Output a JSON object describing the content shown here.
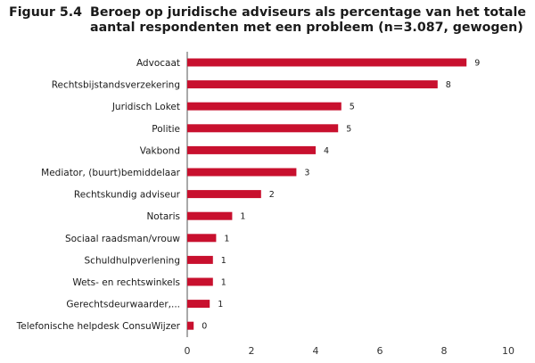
{
  "figure_label": "Figuur 5.4",
  "title_line1": "Beroep op juridische adviseurs als percentage van het totale",
  "title_line2": "aantal respondenten met een probleem (n=3.087, gewogen)",
  "chart_data": {
    "type": "bar",
    "orientation": "horizontal",
    "title": "Beroep op juridische adviseurs als percentage van het totale aantal respondenten met een probleem (n=3.087, gewogen)",
    "categories": [
      "Advocaat",
      "Rechtsbijstandsverzekering",
      "Juridisch Loket",
      "Politie",
      "Vakbond",
      "Mediator, (buurt)bemiddelaar",
      "Rechtskundig adviseur",
      "Notaris",
      "Sociaal raadsman/vrouw",
      "Schuldhulpverlening",
      "Wets- en rechtswinkels",
      "Gerechtsdeurwaarder,...",
      "Telefonische helpdesk ConsuWijzer"
    ],
    "values": [
      8.7,
      7.8,
      4.8,
      4.7,
      4.0,
      3.4,
      2.3,
      1.4,
      0.9,
      0.8,
      0.8,
      0.7,
      0.2
    ],
    "value_labels": [
      "9",
      "8",
      "5",
      "5",
      "4",
      "3",
      "2",
      "1",
      "1",
      "1",
      "1",
      "1",
      "0"
    ],
    "xlim": [
      0,
      10
    ],
    "xticks": [
      0,
      2,
      4,
      6,
      8,
      10
    ],
    "bar_color": "#c8102e",
    "grid": false,
    "legend": "none"
  }
}
